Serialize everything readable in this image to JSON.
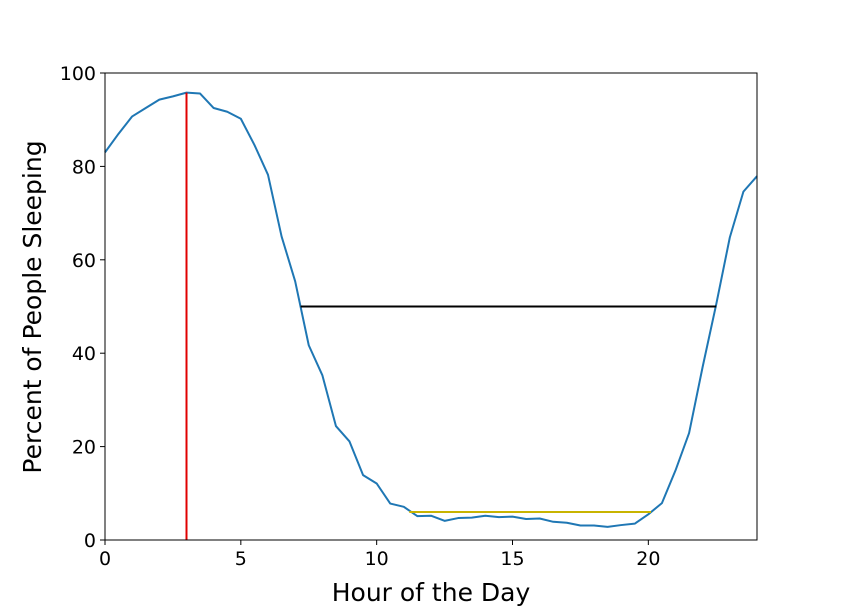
{
  "chart_data": {
    "type": "line",
    "title": "",
    "xlabel": "Hour of the Day",
    "ylabel": "Percent of People Sleeping",
    "xlim": [
      0,
      24
    ],
    "ylim": [
      0,
      100
    ],
    "xticks": [
      0,
      5,
      10,
      15,
      20
    ],
    "yticks": [
      0,
      20,
      40,
      60,
      80,
      100
    ],
    "grid": false,
    "series": [
      {
        "color": "#1f77b4",
        "x": [
          0,
          0.5,
          1,
          1.5,
          2,
          2.5,
          3,
          3.5,
          4,
          4.5,
          5,
          5.5,
          6,
          6.5,
          7,
          7.5,
          8,
          8.5,
          9,
          9.5,
          10,
          10.5,
          11,
          11.5,
          12,
          12.5,
          13,
          13.5,
          14,
          14.5,
          15,
          15.5,
          16,
          16.5,
          17,
          17.5,
          18,
          18.5,
          19,
          19.5,
          20,
          20.5,
          21,
          21.5,
          22,
          22.5,
          23,
          23.5,
          24
        ],
        "y": [
          83,
          87,
          90.7,
          92.5,
          94.3,
          95,
          95.8,
          95.6,
          92.5,
          91.7,
          90.2,
          84.6,
          78.2,
          65,
          55.4,
          41.7,
          35.3,
          24.4,
          21.1,
          13.9,
          12.1,
          7.8,
          7.1,
          5.1,
          5.2,
          4.1,
          4.7,
          4.8,
          5.2,
          4.9,
          5,
          4.5,
          4.6,
          3.9,
          3.7,
          3.1,
          3.1,
          2.8,
          3.2,
          3.5,
          5.5,
          7.9,
          14.9,
          22.9,
          37.1,
          50.5,
          64.8,
          74.6,
          77.9
        ]
      }
    ],
    "annotations": [
      {
        "kind": "vertical-line",
        "color": "#e00000",
        "x": 3,
        "y_from": 0,
        "y_to": 95.8
      },
      {
        "kind": "horizontal-line",
        "color": "#000000",
        "y": 50,
        "x_from": 7.2,
        "x_to": 22.5
      },
      {
        "kind": "horizontal-line",
        "color": "#c8b400",
        "y": 6,
        "x_from": 11.2,
        "x_to": 20.1
      }
    ]
  }
}
